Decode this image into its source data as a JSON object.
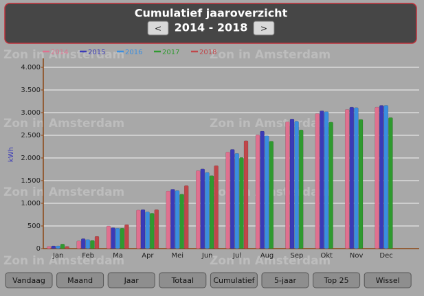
{
  "header": {
    "title": "Cumulatief jaaroverzicht",
    "period": "2014 - 2018",
    "prev": "<",
    "next": ">"
  },
  "watermark": "Zon in Amsterdam",
  "buttons": [
    "Vandaag",
    "Maand",
    "Jaar",
    "Totaal",
    "Cumulatief",
    "5-jaar",
    "Top 25",
    "Wissel"
  ],
  "chart_data": {
    "type": "bar",
    "y_label": "kWh",
    "categories": [
      "Jan",
      "Feb",
      "Ma",
      "Apr",
      "Mei",
      "Jun",
      "Jul",
      "Aug",
      "Sep",
      "Okt",
      "Nov",
      "Dec"
    ],
    "series": [
      {
        "name": "2014",
        "color": "#e0708f",
        "values": [
          50,
          170,
          500,
          850,
          1270,
          1720,
          2130,
          2510,
          2800,
          2980,
          3070,
          3120
        ]
      },
      {
        "name": "2015",
        "color": "#3a3ab8",
        "values": [
          60,
          220,
          460,
          860,
          1310,
          1760,
          2190,
          2590,
          2860,
          3040,
          3120,
          3160
        ]
      },
      {
        "name": "2016",
        "color": "#3a8ee0",
        "values": [
          60,
          200,
          450,
          810,
          1280,
          1680,
          2100,
          2490,
          2810,
          3020,
          3110,
          3160
        ]
      },
      {
        "name": "2017",
        "color": "#2f9a2f",
        "values": [
          100,
          180,
          450,
          780,
          1200,
          1610,
          2010,
          2370,
          2620,
          2790,
          2850,
          2890
        ]
      },
      {
        "name": "2018",
        "color": "#c0464a",
        "values": [
          50,
          270,
          530,
          860,
          1390,
          1830,
          2380,
          null,
          null,
          null,
          null,
          null
        ]
      }
    ],
    "ylim": [
      0,
      4000
    ],
    "yticks": [
      0,
      500,
      {
        "value": 1000,
        "label": "1.000"
      },
      {
        "value": 1500,
        "label": "1.500"
      },
      {
        "value": 2000,
        "label": "2.000"
      },
      {
        "value": 2500,
        "label": "2.500"
      },
      {
        "value": 3000,
        "label": "3.000"
      },
      {
        "value": 3500,
        "label": "3.500"
      },
      {
        "value": 4000,
        "label": "4.000"
      }
    ],
    "grid": true
  }
}
